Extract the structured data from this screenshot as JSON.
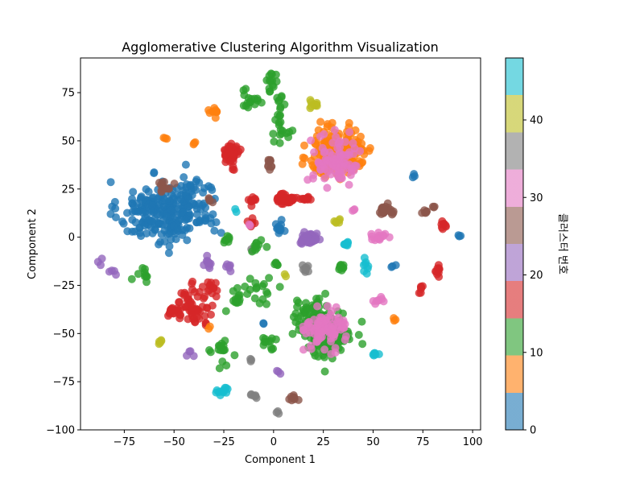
{
  "chart_data": {
    "type": "scatter",
    "title": "Agglomerative Clustering Algorithm Visualization",
    "xlabel": "Component 1",
    "ylabel": "Component 2",
    "xlim": [
      -97,
      104
    ],
    "ylim": [
      -100,
      93
    ],
    "xticks": [
      -75,
      -50,
      -25,
      0,
      25,
      50,
      75,
      100
    ],
    "yticks": [
      -100,
      -75,
      -50,
      -25,
      0,
      25,
      50,
      75
    ],
    "grid": false,
    "legend": "none",
    "colorbar": {
      "label": "클러스터 번호",
      "range": [
        0,
        48
      ],
      "ticks": [
        0,
        10,
        20,
        30,
        40
      ],
      "colormap": "tab10",
      "colors": [
        "#1f77b4",
        "#ff7f0e",
        "#2ca02c",
        "#d62728",
        "#9467bd",
        "#8c564b",
        "#e377c2",
        "#7f7f7f",
        "#bcbd22",
        "#17becf"
      ]
    },
    "clusters": [
      {
        "c": 0,
        "cx": -60,
        "cy": 13,
        "sx": 9,
        "sy": 8,
        "n": 150
      },
      {
        "c": 0,
        "cx": -43,
        "cy": 16,
        "sx": 8,
        "sy": 8,
        "n": 120
      },
      {
        "c": 1,
        "cx": 30,
        "cy": 43,
        "sx": 6,
        "sy": 6,
        "n": 130
      },
      {
        "c": 1,
        "cx": 38,
        "cy": 46,
        "sx": 6,
        "sy": 6,
        "n": 80
      },
      {
        "c": 2,
        "cx": 27,
        "cy": -50,
        "sx": 6,
        "sy": 6,
        "n": 130
      },
      {
        "c": 2,
        "cx": 19,
        "cy": -42,
        "sx": 5,
        "sy": 5,
        "n": 60
      },
      {
        "c": 3,
        "cx": -21,
        "cy": 44,
        "sx": 2,
        "sy": 2,
        "n": 40
      },
      {
        "c": 3,
        "cx": 6,
        "cy": 20,
        "sx": 2,
        "sy": 1.5,
        "n": 40
      },
      {
        "c": 3,
        "cx": 14,
        "cy": 20,
        "sx": 4,
        "sy": 0.5,
        "n": 15
      },
      {
        "c": 3,
        "cx": -40,
        "cy": -36,
        "sx": 5,
        "sy": 5,
        "n": 60
      },
      {
        "c": 3,
        "cx": -51,
        "cy": -38,
        "sx": 2,
        "sy": 1,
        "n": 15
      },
      {
        "c": 3,
        "cx": -30,
        "cy": -26,
        "sx": 2,
        "sy": 2,
        "n": 12
      },
      {
        "c": 3,
        "cx": -21,
        "cy": 37,
        "sx": 1.5,
        "sy": 3,
        "n": 8
      },
      {
        "c": 3,
        "cx": -11,
        "cy": 19,
        "sx": 1.2,
        "sy": 1.2,
        "n": 10
      },
      {
        "c": 3,
        "cx": -11,
        "cy": 7,
        "sx": 1,
        "sy": 1,
        "n": 8
      },
      {
        "c": 3,
        "cx": 83,
        "cy": -17,
        "sx": 1.2,
        "sy": 2,
        "n": 10
      },
      {
        "c": 3,
        "cx": 85,
        "cy": 6,
        "sx": 1.2,
        "sy": 1.5,
        "n": 8
      },
      {
        "c": 3,
        "cx": 74,
        "cy": -27,
        "sx": 0.8,
        "sy": 1,
        "n": 6
      },
      {
        "c": 4,
        "cx": 18,
        "cy": -1,
        "sx": 2,
        "sy": 1.5,
        "n": 60
      },
      {
        "c": 4,
        "cx": -33,
        "cy": -13,
        "sx": 1,
        "sy": 2,
        "n": 10
      },
      {
        "c": 4,
        "cx": -22,
        "cy": -15,
        "sx": 1,
        "sy": 1,
        "n": 6
      },
      {
        "c": 4,
        "cx": -43,
        "cy": -61,
        "sx": 1,
        "sy": 1,
        "n": 4
      },
      {
        "c": 4,
        "cx": -87,
        "cy": -13,
        "sx": 0.8,
        "sy": 0.8,
        "n": 3
      },
      {
        "c": 4,
        "cx": -82,
        "cy": -19,
        "sx": 1,
        "sy": 0.8,
        "n": 4
      },
      {
        "c": 4,
        "cx": 2,
        "cy": -69,
        "sx": 0.8,
        "sy": 0.8,
        "n": 3
      },
      {
        "c": 5,
        "cx": 56,
        "cy": 14,
        "sx": 2,
        "sy": 1.5,
        "n": 25
      },
      {
        "c": 5,
        "cx": -55,
        "cy": 26,
        "sx": 2,
        "sy": 2,
        "n": 12
      },
      {
        "c": 5,
        "cx": 76,
        "cy": 13,
        "sx": 1,
        "sy": 1,
        "n": 6
      },
      {
        "c": 5,
        "cx": 80,
        "cy": 15,
        "sx": 0.8,
        "sy": 0.8,
        "n": 3
      },
      {
        "c": 5,
        "cx": -2,
        "cy": 38,
        "sx": 0.8,
        "sy": 2,
        "n": 10
      },
      {
        "c": 5,
        "cx": 10,
        "cy": -84,
        "sx": 1.2,
        "sy": 1,
        "n": 10
      },
      {
        "c": 5,
        "cx": -31,
        "cy": 19,
        "sx": 1,
        "sy": 1,
        "n": 4
      },
      {
        "c": 6,
        "cx": 26,
        "cy": -47,
        "sx": 5,
        "sy": 5,
        "n": 90
      },
      {
        "c": 6,
        "cx": 32,
        "cy": 40,
        "sx": 6,
        "sy": 6,
        "n": 90
      },
      {
        "c": 6,
        "cx": 53,
        "cy": -33,
        "sx": 2,
        "sy": 1,
        "n": 8
      },
      {
        "c": 6,
        "cx": 53,
        "cy": 0,
        "sx": 2,
        "sy": 1,
        "n": 15
      },
      {
        "c": 6,
        "cx": 40,
        "cy": 15,
        "sx": 0.8,
        "sy": 0.8,
        "n": 3
      },
      {
        "c": 6,
        "cx": -12,
        "cy": 6,
        "sx": 0.8,
        "sy": 0.8,
        "n": 2
      },
      {
        "c": 7,
        "cx": 16,
        "cy": -17,
        "sx": 1,
        "sy": 1.5,
        "n": 10
      },
      {
        "c": 7,
        "cx": -10,
        "cy": -82,
        "sx": 1,
        "sy": 0.8,
        "n": 6
      },
      {
        "c": 7,
        "cx": 2,
        "cy": -91,
        "sx": 0.6,
        "sy": 0.6,
        "n": 3
      },
      {
        "c": 7,
        "cx": -11,
        "cy": -64,
        "sx": 0.6,
        "sy": 0.8,
        "n": 3
      },
      {
        "c": 7,
        "cx": -11,
        "cy": -6,
        "sx": 0.6,
        "sy": 0.6,
        "n": 2
      },
      {
        "c": 8,
        "cx": 21,
        "cy": 69,
        "sx": 1.5,
        "sy": 1,
        "n": 10
      },
      {
        "c": 8,
        "cx": -57,
        "cy": -55,
        "sx": 0.8,
        "sy": 1,
        "n": 5
      },
      {
        "c": 8,
        "cx": 32,
        "cy": 8,
        "sx": 1.2,
        "sy": 1,
        "n": 6
      },
      {
        "c": 8,
        "cx": 6,
        "cy": -20,
        "sx": 0.5,
        "sy": 0.5,
        "n": 2
      },
      {
        "c": 9,
        "cx": -26,
        "cy": -79,
        "sx": 1.5,
        "sy": 1,
        "n": 10
      },
      {
        "c": 9,
        "cx": 37,
        "cy": -4,
        "sx": 1.2,
        "sy": 1,
        "n": 8
      },
      {
        "c": 9,
        "cx": 46,
        "cy": -17,
        "sx": 0.8,
        "sy": 2,
        "n": 8
      },
      {
        "c": 9,
        "cx": 51,
        "cy": -61,
        "sx": 1.2,
        "sy": 1,
        "n": 6
      },
      {
        "c": 9,
        "cx": -19,
        "cy": 14,
        "sx": 0.6,
        "sy": 0.6,
        "n": 2
      },
      {
        "c": 9,
        "cx": -25,
        "cy": -80,
        "sx": 0.6,
        "sy": 0.6,
        "n": 2
      },
      {
        "c": 10,
        "cx": 3,
        "cy": 4,
        "sx": 1.5,
        "sy": 1.5,
        "n": 12
      },
      {
        "c": 10,
        "cx": 70,
        "cy": 32,
        "sx": 0.8,
        "sy": 0.8,
        "n": 3
      },
      {
        "c": 10,
        "cx": 93,
        "cy": 0,
        "sx": 0.8,
        "sy": 0.8,
        "n": 3
      },
      {
        "c": 10,
        "cx": 60,
        "cy": -15,
        "sx": 0.8,
        "sy": 0.8,
        "n": 3
      },
      {
        "c": 10,
        "cx": -5,
        "cy": -44,
        "sx": 0.6,
        "sy": 0.6,
        "n": 2
      },
      {
        "c": 11,
        "cx": -30,
        "cy": 65,
        "sx": 1.5,
        "sy": 1,
        "n": 10
      },
      {
        "c": 11,
        "cx": -54,
        "cy": 51,
        "sx": 0.6,
        "sy": 0.6,
        "n": 3
      },
      {
        "c": 11,
        "cx": -39,
        "cy": 49,
        "sx": 0.6,
        "sy": 0.6,
        "n": 3
      },
      {
        "c": 11,
        "cx": 61,
        "cy": -43,
        "sx": 0.6,
        "sy": 0.6,
        "n": 3
      },
      {
        "c": 11,
        "cx": -32,
        "cy": -47,
        "sx": 0.5,
        "sy": 0.5,
        "n": 2
      },
      {
        "c": 12,
        "cx": -2,
        "cy": 80,
        "sx": 2,
        "sy": 3,
        "n": 14
      },
      {
        "c": 12,
        "cx": -12,
        "cy": 72,
        "sx": 3,
        "sy": 3,
        "n": 16
      },
      {
        "c": 12,
        "cx": 3,
        "cy": 70,
        "sx": 1,
        "sy": 3,
        "n": 8
      },
      {
        "c": 12,
        "cx": 3,
        "cy": 58,
        "sx": 2,
        "sy": 4,
        "n": 14
      },
      {
        "c": 12,
        "cx": 8,
        "cy": 54,
        "sx": 1,
        "sy": 1,
        "n": 4
      },
      {
        "c": 12,
        "cx": -23,
        "cy": -1,
        "sx": 1,
        "sy": 1,
        "n": 8
      },
      {
        "c": 12,
        "cx": -18,
        "cy": -30,
        "sx": 1.5,
        "sy": 3,
        "n": 14
      },
      {
        "c": 12,
        "cx": -25,
        "cy": -58,
        "sx": 2,
        "sy": 4,
        "n": 16
      },
      {
        "c": 12,
        "cx": -65,
        "cy": -20,
        "sx": 1.5,
        "sy": 2,
        "n": 10
      },
      {
        "c": 12,
        "cx": -6,
        "cy": -27,
        "sx": 3,
        "sy": 3,
        "n": 16
      },
      {
        "c": 12,
        "cx": -8,
        "cy": -7,
        "sx": 2,
        "sy": 2,
        "n": 10
      },
      {
        "c": 12,
        "cx": -4,
        "cy": -54,
        "sx": 3,
        "sy": 2,
        "n": 10
      },
      {
        "c": 12,
        "cx": 33,
        "cy": -16,
        "sx": 1.2,
        "sy": 1.2,
        "n": 8
      },
      {
        "c": 12,
        "cx": 1,
        "cy": -14,
        "sx": 1,
        "sy": 1.2,
        "n": 6
      },
      {
        "c": 12,
        "cx": -31,
        "cy": -59,
        "sx": 0.6,
        "sy": 0.6,
        "n": 2
      },
      {
        "c": 12,
        "cx": -1,
        "cy": -58,
        "sx": 0.6,
        "sy": 0.6,
        "n": 2
      }
    ]
  }
}
